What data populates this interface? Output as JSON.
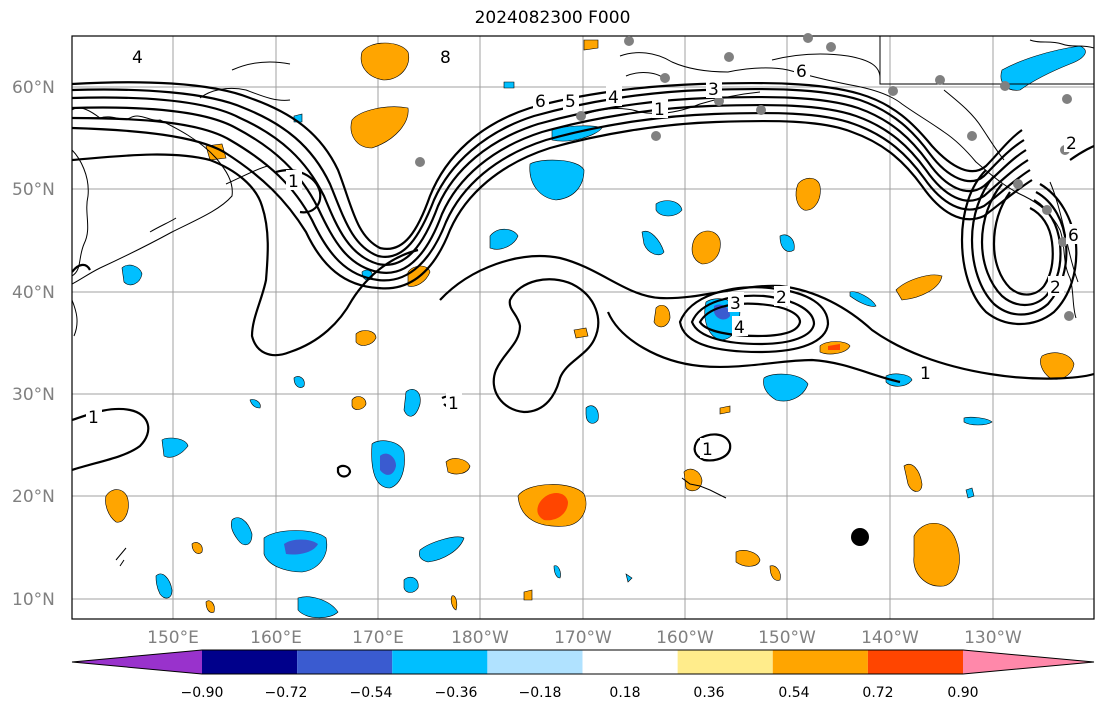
{
  "title": "2024082300 F000",
  "map": {
    "lat_labels": [
      "60°N",
      "50°N",
      "40°N",
      "30°N",
      "20°N",
      "10°N"
    ],
    "lon_labels": [
      "150°E",
      "160°E",
      "170°E",
      "180°W",
      "170°W",
      "160°W",
      "150°W",
      "140°W",
      "130°W"
    ],
    "contour_labels": [
      "4",
      "6",
      "5",
      "4",
      "3",
      "6",
      "2",
      "1",
      "1",
      "3",
      "2",
      "4",
      "1",
      "1",
      "1",
      "1",
      "2",
      "8",
      "6"
    ],
    "grid_visible": true,
    "observation_marker": "black-dot",
    "station_markers": "grey-dots"
  },
  "colorbar": {
    "ticks": [
      "−0.90",
      "−0.72",
      "−0.54",
      "−0.36",
      "−0.18",
      "0.18",
      "0.36",
      "0.54",
      "0.72",
      "0.90"
    ],
    "colors": [
      "#9932CC",
      "#00008B",
      "#3A5BD0",
      "#00BFFF",
      "#B0E2FF",
      "#FFFFFF",
      "#FFEC8B",
      "#FFA500",
      "#FF4500",
      "#B22222",
      "#FF88AA"
    ]
  }
}
